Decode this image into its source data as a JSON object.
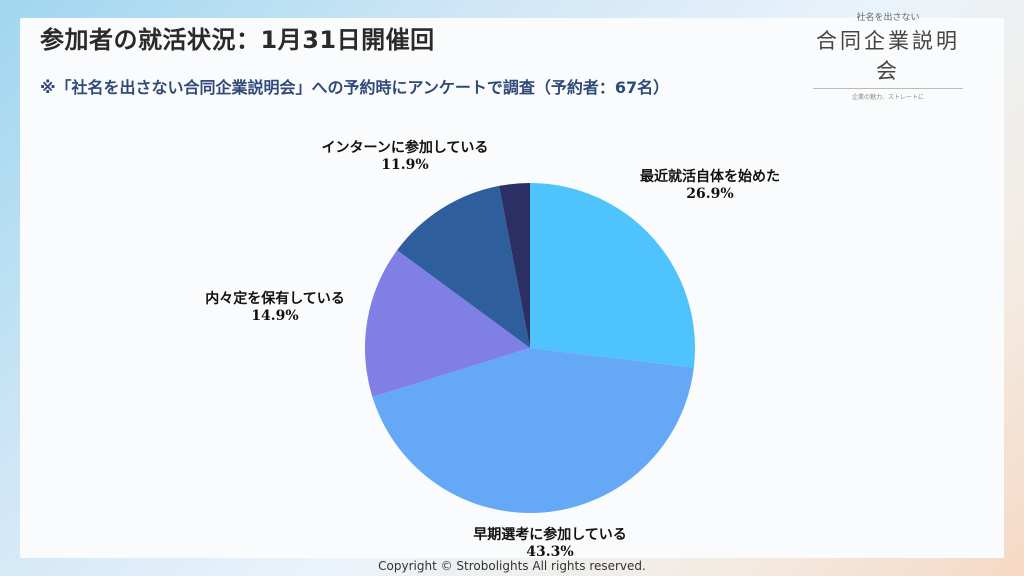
{
  "title": "参加者の就活状況：1月31日開催回",
  "subtitle": "※「社名を出さない合同企業説明会」への予約時にアンケートで調査（予約者：67名）",
  "logo": {
    "small": "社名を出さない",
    "main": "合同企業説明会",
    "tagline": "企業の魅力、ストレートに"
  },
  "chart_data": {
    "type": "pie",
    "title": "参加者の就活状況：1月31日開催回",
    "start_angle_deg": 0,
    "direction": "clockwise",
    "slices": [
      {
        "label": "最近就活自体を始めた",
        "value": 26.9,
        "pct_label": "26.9%",
        "color": "#4fc3fb"
      },
      {
        "label": "早期選考に参加している",
        "value": 43.3,
        "pct_label": "43.3%",
        "color": "#65a8f5"
      },
      {
        "label": "内々定を保有している",
        "value": 14.9,
        "pct_label": "14.9%",
        "color": "#7f7fe6"
      },
      {
        "label": "インターンに参加している",
        "value": 11.9,
        "pct_label": "11.9%",
        "color": "#2e5e9b"
      },
      {
        "label": "",
        "value": 3.0,
        "pct_label": "",
        "color": "#2b2f63"
      }
    ]
  },
  "copyright": "Copyright © Strobolights All rights reserved."
}
